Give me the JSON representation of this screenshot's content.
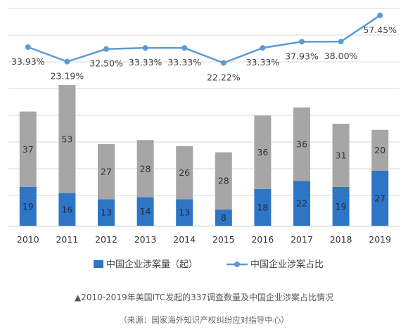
{
  "chart_data": {
    "type": "bar+line",
    "categories": [
      "2010",
      "2011",
      "2012",
      "2013",
      "2014",
      "2015",
      "2016",
      "2017",
      "2018",
      "2019"
    ],
    "series": [
      {
        "name": "中国企业涉案量（起）",
        "kind": "stacked-bar-bottom",
        "color": "#2E75C6",
        "values": [
          19,
          16,
          13,
          14,
          13,
          8,
          18,
          22,
          19,
          27
        ]
      },
      {
        "name": "",
        "kind": "stacked-bar-top",
        "color": "#A6A6A6",
        "values": [
          37,
          53,
          27,
          28,
          26,
          28,
          36,
          36,
          31,
          20
        ]
      },
      {
        "name": "中国企业涉案占比",
        "kind": "line",
        "color": "#5B9BD5",
        "values": [
          33.93,
          23.19,
          32.5,
          33.33,
          33.33,
          22.22,
          33.33,
          37.93,
          38.0,
          57.45
        ],
        "labels": [
          "33.93%",
          "23.19%",
          "32.50%",
          "33.33%",
          "33.33%",
          "22.22%",
          "33.33%",
          "37.93%",
          "38.00%",
          "57.45%"
        ]
      }
    ],
    "legend_position": "bottom",
    "grid": true
  },
  "caption": {
    "title": "▲2010-2019年美国ITC发起的337调查数量及中国企业涉案占比情况",
    "source": "（来源：国家海外知识产权纠纷应对指导中心）"
  }
}
